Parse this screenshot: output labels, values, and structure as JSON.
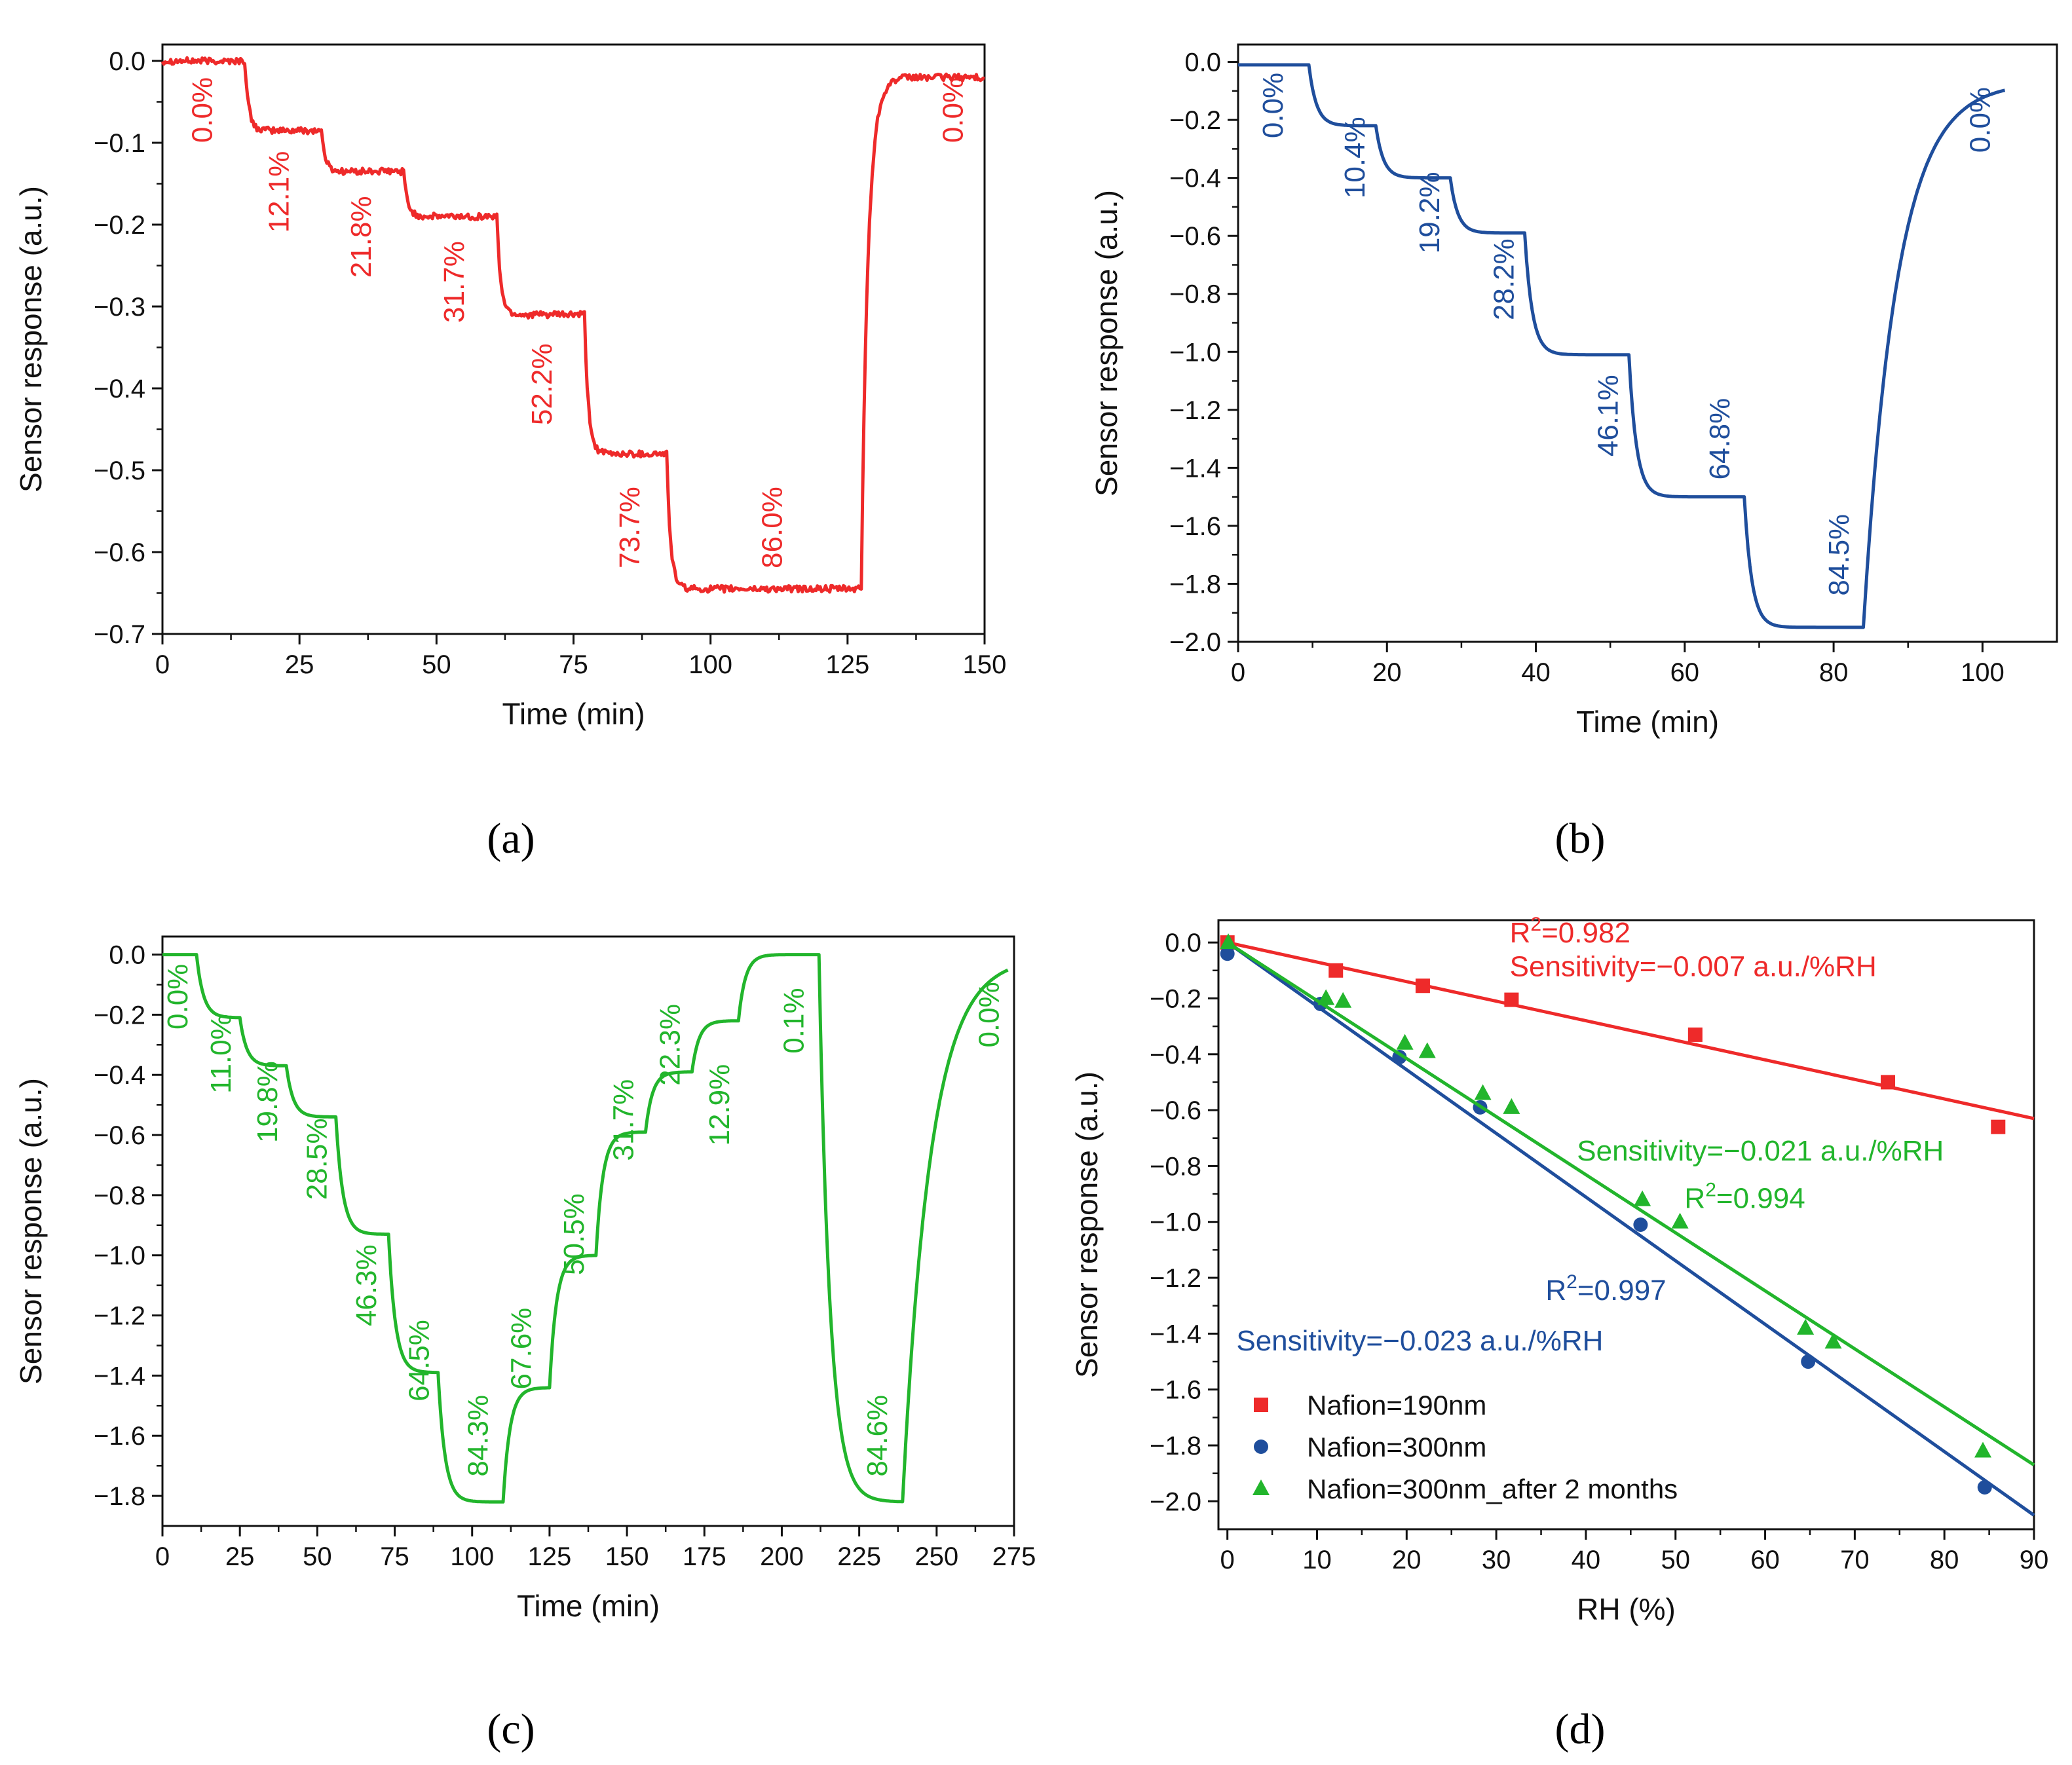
{
  "chart_data": [
    {
      "id": "a",
      "type": "line",
      "panel_label": "(a)",
      "xlabel": "Time (min)",
      "ylabel": "Sensor response (a.u.)",
      "xlim": [
        0,
        150
      ],
      "ylim": [
        -0.7,
        0.02
      ],
      "xticks": [
        0,
        25,
        50,
        75,
        100,
        125,
        150
      ],
      "yticks": [
        0.0,
        -0.1,
        -0.2,
        -0.3,
        -0.4,
        -0.5,
        -0.6,
        -0.7
      ],
      "xtick_labels": [
        "0",
        "25",
        "50",
        "75",
        "100",
        "125",
        "150"
      ],
      "ytick_labels": [
        "0.0",
        "−0.1",
        "−0.2",
        "−0.3",
        "−0.4",
        "−0.5",
        "−0.6",
        "−0.7"
      ],
      "color": "#ee2a2a",
      "noise": 0.004,
      "tau": 0.7,
      "start": 0.0,
      "steps": [
        {
          "t": 15,
          "level": -0.085
        },
        {
          "t": 29,
          "level": -0.135
        },
        {
          "t": 44,
          "level": -0.19
        },
        {
          "t": 61,
          "level": -0.31
        },
        {
          "t": 77,
          "level": -0.48
        },
        {
          "t": 92,
          "level": -0.645
        },
        {
          "t": 127.5,
          "level": -0.02,
          "tau": 1.2,
          "to": 0.0
        }
      ],
      "end_t": 150,
      "labels": [
        {
          "text": "0.0%",
          "x": 9,
          "y": -0.06
        },
        {
          "text": "12.1%",
          "x": 23,
          "y": -0.16
        },
        {
          "text": "21.8%",
          "x": 38,
          "y": -0.215
        },
        {
          "text": "31.7%",
          "x": 55,
          "y": -0.27
        },
        {
          "text": "52.2%",
          "x": 71,
          "y": -0.395
        },
        {
          "text": "73.7%",
          "x": 87,
          "y": -0.57
        },
        {
          "text": "86.0%",
          "x": 113,
          "y": -0.57
        },
        {
          "text": "0.0%",
          "x": 146,
          "y": -0.06
        }
      ]
    },
    {
      "id": "b",
      "type": "line",
      "panel_label": "(b)",
      "xlabel": "Time (min)",
      "ylabel": "Sensor response (a.u.)",
      "xlim": [
        0,
        110
      ],
      "ylim": [
        -2.0,
        0.06
      ],
      "xticks": [
        0,
        20,
        40,
        60,
        80,
        100
      ],
      "yticks": [
        0.0,
        -0.2,
        -0.4,
        -0.6,
        -0.8,
        -1.0,
        -1.2,
        -1.4,
        -1.6,
        -1.8,
        -2.0
      ],
      "xtick_labels": [
        "0",
        "20",
        "40",
        "60",
        "80",
        "100"
      ],
      "ytick_labels": [
        "0.0",
        "−0.2",
        "−0.4",
        "−0.6",
        "−0.8",
        "−1.0",
        "−1.2",
        "−1.4",
        "−1.6",
        "−1.8",
        "−2.0"
      ],
      "color": "#1f4e9c",
      "noise": 0,
      "tau": 1.0,
      "start": -0.01,
      "steps": [
        {
          "t": 9.5,
          "level": -0.22
        },
        {
          "t": 18.5,
          "level": -0.4
        },
        {
          "t": 28.5,
          "level": -0.59
        },
        {
          "t": 38.5,
          "level": -1.01
        },
        {
          "t": 52.5,
          "level": -1.5
        },
        {
          "t": 68,
          "level": -1.95
        },
        {
          "t": 84,
          "level": -0.07,
          "tau": 4.5,
          "to": 103
        }
      ],
      "end_t": 103,
      "labels": [
        {
          "text": "0.0%",
          "x": 6,
          "y": -0.15
        },
        {
          "text": "10.4%",
          "x": 17,
          "y": -0.33
        },
        {
          "text": "19.2%",
          "x": 27,
          "y": -0.52
        },
        {
          "text": "28.2%",
          "x": 37,
          "y": -0.75
        },
        {
          "text": "46.1%",
          "x": 51,
          "y": -1.22
        },
        {
          "text": "64.8%",
          "x": 66,
          "y": -1.3
        },
        {
          "text": "84.5%",
          "x": 82,
          "y": -1.7
        },
        {
          "text": "0.0%",
          "x": 101,
          "y": -0.2
        }
      ]
    },
    {
      "id": "c",
      "type": "line",
      "panel_label": "(c)",
      "xlabel": "Time (min)",
      "ylabel": "Sensor response (a.u.)",
      "xlim": [
        0,
        275
      ],
      "ylim": [
        -1.9,
        0.06
      ],
      "xticks": [
        0,
        25,
        50,
        75,
        100,
        125,
        150,
        175,
        200,
        225,
        250,
        275
      ],
      "yticks": [
        0.0,
        -0.2,
        -0.4,
        -0.6,
        -0.8,
        -1.0,
        -1.2,
        -1.4,
        -1.6,
        -1.8
      ],
      "xtick_labels": [
        "0",
        "25",
        "50",
        "75",
        "100",
        "125",
        "150",
        "175",
        "200",
        "225",
        "250",
        "275"
      ],
      "ytick_labels": [
        "0.0",
        "−0.2",
        "−0.4",
        "−0.6",
        "−0.8",
        "−1.0",
        "−1.2",
        "−1.4",
        "−1.6",
        "−1.8"
      ],
      "color": "#22b52c",
      "noise": 0,
      "tau": 2.2,
      "start": 0.0,
      "steps": [
        {
          "t": 11,
          "level": -0.21
        },
        {
          "t": 25,
          "level": -0.37
        },
        {
          "t": 40,
          "level": -0.54
        },
        {
          "t": 56,
          "level": -0.93
        },
        {
          "t": 73,
          "level": -1.39
        },
        {
          "t": 89,
          "level": -1.82
        },
        {
          "t": 110,
          "level": -1.44
        },
        {
          "t": 125,
          "level": -1.0
        },
        {
          "t": 140,
          "level": -0.59
        },
        {
          "t": 156,
          "level": -0.39
        },
        {
          "t": 171,
          "level": -0.22
        },
        {
          "t": 186,
          "level": 0.0
        },
        {
          "t": 212,
          "level": -1.82,
          "tau": 3.5
        },
        {
          "t": 239,
          "level": -0.01,
          "tau": 9
        }
      ],
      "end_t": 273,
      "labels": [
        {
          "text": "0.0%",
          "x": 8,
          "y": -0.14
        },
        {
          "text": "11.0%",
          "x": 22,
          "y": -0.33
        },
        {
          "text": "19.8%",
          "x": 37,
          "y": -0.49
        },
        {
          "text": "28.5%",
          "x": 53,
          "y": -0.68
        },
        {
          "text": "46.3%",
          "x": 69,
          "y": -1.1
        },
        {
          "text": "64.5%",
          "x": 86,
          "y": -1.35
        },
        {
          "text": "84.3%",
          "x": 105,
          "y": -1.6
        },
        {
          "text": "67.6%",
          "x": 119,
          "y": -1.31
        },
        {
          "text": "50.5%",
          "x": 136,
          "y": -0.93
        },
        {
          "text": "31.7%",
          "x": 152,
          "y": -0.55
        },
        {
          "text": "22.3%",
          "x": 167,
          "y": -0.3
        },
        {
          "text": "12.9%",
          "x": 183,
          "y": -0.5
        },
        {
          "text": "0.1%",
          "x": 207,
          "y": -0.22
        },
        {
          "text": "84.6%",
          "x": 234,
          "y": -1.6
        },
        {
          "text": "0.0%",
          "x": 270,
          "y": -0.2
        }
      ]
    },
    {
      "id": "d",
      "type": "scatter",
      "panel_label": "(d)",
      "xlabel": "RH (%)",
      "ylabel": "Sensor response (a.u.)",
      "xlim": [
        -1,
        90
      ],
      "ylim": [
        -2.1,
        0.08
      ],
      "xticks": [
        0,
        10,
        20,
        30,
        40,
        50,
        60,
        70,
        80,
        90
      ],
      "yticks": [
        0.0,
        -0.2,
        -0.4,
        -0.6,
        -0.8,
        -1.0,
        -1.2,
        -1.4,
        -1.6,
        -1.8,
        -2.0
      ],
      "xtick_labels": [
        "0",
        "10",
        "20",
        "30",
        "40",
        "50",
        "60",
        "70",
        "80",
        "90"
      ],
      "ytick_labels": [
        "0.0",
        "−0.2",
        "−0.4",
        "−0.6",
        "−0.8",
        "−1.0",
        "−1.2",
        "−1.4",
        "−1.6",
        "−1.8",
        "−2.0"
      ],
      "series": [
        {
          "name": "Nafion=190nm",
          "marker": "square",
          "color": "#ee2a2a",
          "x": [
            0.0,
            12.1,
            21.8,
            31.7,
            52.2,
            73.7,
            86.0
          ],
          "y": [
            0.0,
            -0.1,
            -0.155,
            -0.205,
            -0.33,
            -0.5,
            -0.66
          ],
          "fit": {
            "x0": 0,
            "y0": 0.0,
            "x1": 90,
            "y1": -0.63
          },
          "r2_text": "0.982",
          "sensitivity_text": "Sensitivity=−0.007 a.u./%RH",
          "r2_pos": [
            31.5,
            0.0
          ],
          "sens_pos": [
            31.5,
            -0.12
          ]
        },
        {
          "name": "Nafion=300nm",
          "marker": "circle",
          "color": "#1f4e9c",
          "x": [
            0.0,
            10.4,
            19.2,
            28.2,
            46.1,
            64.8,
            84.5
          ],
          "y": [
            -0.04,
            -0.22,
            -0.41,
            -0.59,
            -1.01,
            -1.5,
            -1.95
          ],
          "fit": {
            "x0": 0,
            "y0": 0.0,
            "x1": 90,
            "y1": -2.05
          },
          "r2_text": "0.997",
          "sensitivity_text": "Sensitivity=−0.023 a.u./%RH",
          "r2_pos": [
            35.5,
            -1.28
          ],
          "sens_pos": [
            1,
            -1.46
          ]
        },
        {
          "name": "Nafion=300nm_after 2 months",
          "marker": "triangle",
          "color": "#22b52c",
          "x": [
            0.1,
            11.0,
            12.9,
            19.8,
            22.3,
            28.5,
            31.7,
            46.3,
            50.5,
            64.5,
            67.6,
            84.3
          ],
          "y": [
            0.0,
            -0.2,
            -0.21,
            -0.36,
            -0.39,
            -0.54,
            -0.59,
            -0.92,
            -1.0,
            -1.38,
            -1.43,
            -1.82
          ],
          "fit": {
            "x0": 0,
            "y0": 0.0,
            "x1": 90,
            "y1": -1.87
          },
          "r2_text": "0.994",
          "sensitivity_text": "Sensitivity=−0.021 a.u./%RH",
          "r2_pos": [
            51,
            -0.95
          ],
          "sens_pos": [
            39,
            -0.78
          ]
        }
      ],
      "legend": "bottom-left"
    }
  ]
}
